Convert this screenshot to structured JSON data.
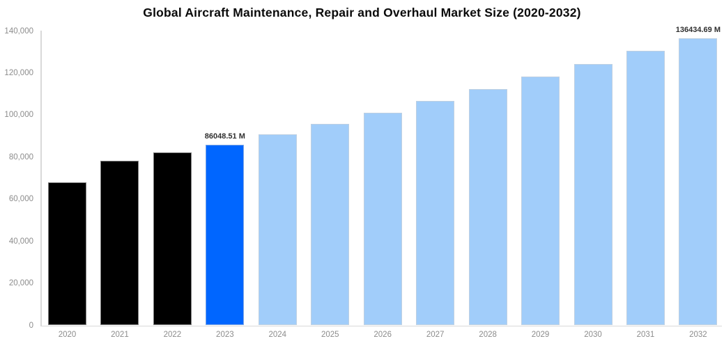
{
  "title": "Global Aircraft Maintenance, Repair and Overhaul Market Size (2020-2032)",
  "colors": {
    "background": "#ffffff",
    "bar_historical": "#000000",
    "bar_highlight": "#0066ff",
    "bar_forecast": "#a1cdfa",
    "bar_border": "#d9d9d9",
    "axis_line": "#d9d9d9",
    "tick_text": "#8c8c8c",
    "annotation_text": "#2f2f2f",
    "title_text": "#0a0a0a"
  },
  "y_axis": {
    "tick_labels": [
      "0",
      "20,000",
      "40,000",
      "60,000",
      "80,000",
      "100,000",
      "120,000",
      "140,000"
    ],
    "tick_values": [
      0,
      20000,
      40000,
      60000,
      80000,
      100000,
      120000,
      140000
    ]
  },
  "chart_data": {
    "type": "bar",
    "title": "Global Aircraft Maintenance, Repair and Overhaul Market Size (2020-2032)",
    "xlabel": "",
    "ylabel": "",
    "ylim": [
      0,
      140000
    ],
    "grid": false,
    "legend_position": "none",
    "unit": "M",
    "categories": [
      "2020",
      "2021",
      "2022",
      "2023",
      "2024",
      "2025",
      "2026",
      "2027",
      "2028",
      "2029",
      "2030",
      "2031",
      "2032"
    ],
    "values": [
      68000,
      78200,
      82200,
      86048.51,
      90800,
      95700,
      101200,
      106700,
      112500,
      118300,
      124300,
      130500,
      136434.69
    ],
    "bar_styles": [
      "historical",
      "historical",
      "historical",
      "highlight",
      "forecast",
      "forecast",
      "forecast",
      "forecast",
      "forecast",
      "forecast",
      "forecast",
      "forecast",
      "forecast"
    ],
    "annotations": [
      {
        "index": 3,
        "text": "86048.51 M"
      },
      {
        "index": 12,
        "text": "136434.69 M"
      }
    ]
  }
}
